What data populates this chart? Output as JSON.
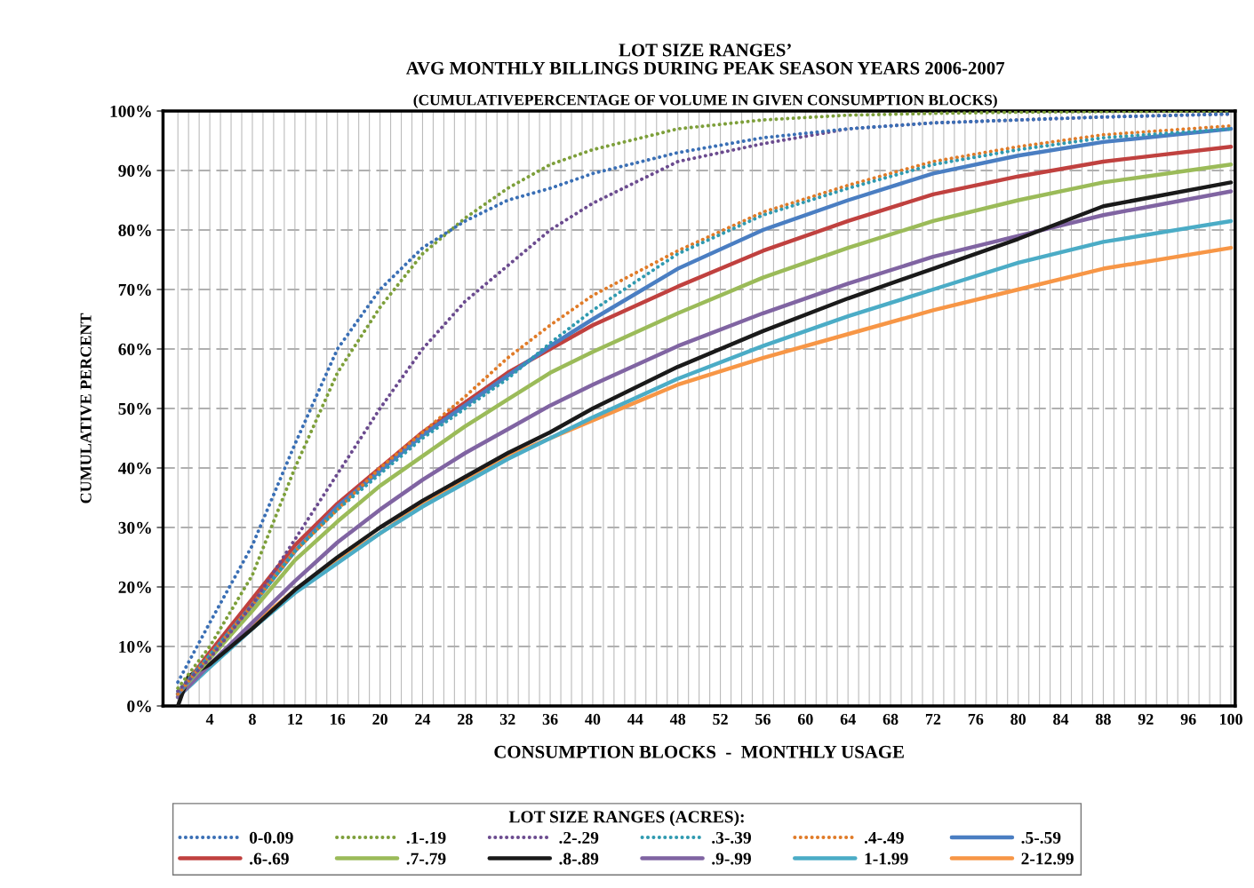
{
  "chart_data": {
    "type": "line",
    "title": "LOT SIZE RANGES’\nAVG MONTHLY BILLINGS DURING PEAK SEASON YEARS 2006-2007",
    "subtitle": "(CUMULATIVEPERCENTAGE OF VOLUME IN GIVEN CONSUMPTION BLOCKS)",
    "xlabel": "CONSUMPTION BLOCKS  -  MONTHLY USAGE",
    "ylabel": "CUMULATIVE PERCENT",
    "legend_title": "LOT SIZE RANGES (ACRES):",
    "legend": "bottom",
    "grid": true,
    "xlim": [
      -0.4,
      100.4
    ],
    "xticks": [
      {
        "value": 1,
        "label": null
      },
      {
        "value": 2,
        "label": null
      },
      {
        "value": 3,
        "label": null
      },
      4,
      {
        "value": 5,
        "label": null
      },
      {
        "value": 6,
        "label": null
      },
      {
        "value": 7,
        "label": null
      },
      8,
      {
        "value": 9,
        "label": null
      },
      {
        "value": 10,
        "label": null
      },
      {
        "value": 11,
        "label": null
      },
      12,
      {
        "value": 13,
        "label": null
      },
      {
        "value": 14,
        "label": null
      },
      {
        "value": 15,
        "label": null
      },
      16,
      {
        "value": 17,
        "label": null
      },
      {
        "value": 18,
        "label": null
      },
      {
        "value": 19,
        "label": null
      },
      20,
      {
        "value": 21,
        "label": null
      },
      {
        "value": 22,
        "label": null
      },
      {
        "value": 23,
        "label": null
      },
      24,
      {
        "value": 25,
        "label": null
      },
      {
        "value": 26,
        "label": null
      },
      {
        "value": 27,
        "label": null
      },
      28,
      {
        "value": 29,
        "label": null
      },
      {
        "value": 30,
        "label": null
      },
      {
        "value": 31,
        "label": null
      },
      32,
      {
        "value": 33,
        "label": null
      },
      {
        "value": 34,
        "label": null
      },
      {
        "value": 35,
        "label": null
      },
      36,
      {
        "value": 37,
        "label": null
      },
      {
        "value": 38,
        "label": null
      },
      {
        "value": 39,
        "label": null
      },
      40,
      {
        "value": 41,
        "label": null
      },
      {
        "value": 42,
        "label": null
      },
      {
        "value": 43,
        "label": null
      },
      44,
      {
        "value": 45,
        "label": null
      },
      {
        "value": 46,
        "label": null
      },
      {
        "value": 47,
        "label": null
      },
      48,
      {
        "value": 49,
        "label": null
      },
      {
        "value": 50,
        "label": null
      },
      {
        "value": 51,
        "label": null
      },
      52,
      {
        "value": 53,
        "label": null
      },
      {
        "value": 54,
        "label": null
      },
      {
        "value": 55,
        "label": null
      },
      56,
      {
        "value": 57,
        "label": null
      },
      {
        "value": 58,
        "label": null
      },
      {
        "value": 59,
        "label": null
      },
      60,
      {
        "value": 61,
        "label": null
      },
      {
        "value": 62,
        "label": null
      },
      {
        "value": 63,
        "label": null
      },
      64,
      {
        "value": 65,
        "label": null
      },
      {
        "value": 66,
        "label": null
      },
      {
        "value": 67,
        "label": null
      },
      68,
      {
        "value": 69,
        "label": null
      },
      {
        "value": 70,
        "label": null
      },
      {
        "value": 71,
        "label": null
      },
      72,
      {
        "value": 73,
        "label": null
      },
      {
        "value": 74,
        "label": null
      },
      {
        "value": 75,
        "label": null
      },
      76,
      {
        "value": 77,
        "label": null
      },
      {
        "value": 78,
        "label": null
      },
      {
        "value": 79,
        "label": null
      },
      80,
      {
        "value": 81,
        "label": null
      },
      {
        "value": 82,
        "label": null
      },
      {
        "value": 83,
        "label": null
      },
      84,
      {
        "value": 85,
        "label": null
      },
      {
        "value": 86,
        "label": null
      },
      {
        "value": 87,
        "label": null
      },
      88,
      {
        "value": 89,
        "label": null
      },
      {
        "value": 90,
        "label": null
      },
      {
        "value": 91,
        "label": null
      },
      92,
      {
        "value": 93,
        "label": null
      },
      {
        "value": 94,
        "label": null
      },
      {
        "value": 95,
        "label": null
      },
      96,
      {
        "value": 97,
        "label": null
      },
      {
        "value": 98,
        "label": null
      },
      {
        "value": 99,
        "label": null
      },
      100
    ],
    "ylim": [
      0,
      100
    ],
    "yticks": [
      {
        "value": 0,
        "label": "0%"
      },
      {
        "value": 10,
        "label": "10%"
      },
      {
        "value": 20,
        "label": "20%"
      },
      {
        "value": 30,
        "label": "30%"
      },
      {
        "value": 40,
        "label": "40%"
      },
      {
        "value": 50,
        "label": "50%"
      },
      {
        "value": 60,
        "label": "60%"
      },
      {
        "value": 70,
        "label": "70%"
      },
      {
        "value": 80,
        "label": "80%"
      },
      {
        "value": 90,
        "label": "90%"
      },
      {
        "value": 100,
        "label": "100%"
      }
    ],
    "series": [
      {
        "name": "0-0.09",
        "color": "#3a6fb5",
        "line_style": "dotted",
        "x": [
          1,
          4,
          8,
          12,
          16,
          20,
          24,
          28,
          32,
          36,
          40,
          48,
          56,
          64,
          72,
          80,
          88,
          100
        ],
        "values": [
          4,
          14,
          27,
          44,
          60,
          70,
          77,
          81.5,
          85,
          87,
          89.5,
          93,
          95.5,
          97,
          98,
          98.5,
          99,
          99.5
        ]
      },
      {
        "name": ".1-.19",
        "color": "#7d9f3a",
        "line_style": "dotted",
        "x": [
          1,
          4,
          8,
          12,
          16,
          20,
          24,
          28,
          32,
          36,
          40,
          48,
          56,
          64,
          72,
          80,
          88,
          100
        ],
        "values": [
          3,
          10,
          22,
          40,
          56,
          67,
          76,
          82,
          87,
          91,
          93.5,
          97,
          98.5,
          99.3,
          99.6,
          99.8,
          99.9,
          100
        ]
      },
      {
        "name": ".2-.29",
        "color": "#6b4b8f",
        "line_style": "dotted",
        "x": [
          1,
          4,
          8,
          12,
          16,
          20,
          24,
          28,
          32,
          36,
          40,
          48,
          56,
          64,
          72,
          80,
          88,
          100
        ],
        "values": [
          2.5,
          8,
          17,
          28,
          39,
          50,
          60,
          68,
          74,
          80,
          84.5,
          91.5,
          94.5,
          97,
          98,
          98.5,
          99,
          99.5
        ]
      },
      {
        "name": ".3-.39",
        "color": "#2f9ab0",
        "line_style": "dotted",
        "x": [
          1,
          4,
          8,
          12,
          16,
          20,
          24,
          28,
          32,
          36,
          40,
          48,
          56,
          64,
          72,
          80,
          88,
          100
        ],
        "values": [
          2.5,
          8.5,
          17,
          26,
          33,
          39,
          45,
          50,
          55,
          61,
          66.5,
          76,
          82.5,
          87,
          91,
          93.5,
          95.5,
          97
        ]
      },
      {
        "name": ".4-.49",
        "color": "#e07b28",
        "line_style": "dotted",
        "x": [
          1,
          4,
          8,
          12,
          16,
          20,
          24,
          28,
          32,
          36,
          40,
          48,
          56,
          64,
          72,
          80,
          88,
          100
        ],
        "values": [
          2,
          8.5,
          17,
          26,
          33,
          40,
          46,
          52,
          58.5,
          64,
          69,
          76.5,
          83,
          87.5,
          91.5,
          94,
          96,
          97.5
        ]
      },
      {
        "name": ".5-.59",
        "color": "#4a7ec2",
        "line_style": "solid",
        "x": [
          1,
          4,
          8,
          12,
          16,
          20,
          24,
          28,
          32,
          36,
          40,
          48,
          56,
          64,
          72,
          80,
          88,
          100
        ],
        "values": [
          2,
          8.5,
          17,
          26,
          33.5,
          39.5,
          45.5,
          50.5,
          55.5,
          60.5,
          65,
          73.5,
          80,
          85,
          89.5,
          92.5,
          94.8,
          97
        ]
      },
      {
        "name": ".6-.69",
        "color": "#c0413f",
        "line_style": "solid",
        "x": [
          1,
          4,
          8,
          12,
          16,
          20,
          24,
          28,
          32,
          36,
          40,
          48,
          56,
          64,
          72,
          80,
          88,
          100
        ],
        "values": [
          2,
          9,
          18,
          27,
          34,
          40,
          46,
          51,
          56,
          60,
          64,
          70.5,
          76.5,
          81.5,
          86,
          89,
          91.5,
          94
        ]
      },
      {
        "name": ".7-.79",
        "color": "#9bbb59",
        "line_style": "solid",
        "x": [
          1,
          4,
          8,
          12,
          16,
          20,
          24,
          28,
          32,
          36,
          40,
          48,
          56,
          64,
          72,
          80,
          88,
          100
        ],
        "values": [
          2,
          8,
          16,
          24.5,
          31,
          37,
          42,
          47,
          51.5,
          56,
          59.5,
          66,
          72,
          77,
          81.5,
          85,
          88,
          91
        ]
      },
      {
        "name": ".8-.89",
        "color": "#1a1a1a",
        "line_style": "solid",
        "x": [
          1,
          2,
          4,
          8,
          12,
          16,
          20,
          24,
          28,
          32,
          36,
          40,
          48,
          56,
          64,
          72,
          80,
          88,
          100
        ],
        "values": [
          0,
          5,
          7,
          13,
          19.5,
          25,
          30,
          34.5,
          38.5,
          42.5,
          46,
          50,
          57,
          63,
          68.5,
          73.5,
          78.5,
          84,
          88
        ]
      },
      {
        "name": ".9-.99",
        "color": "#8064a2",
        "line_style": "solid",
        "x": [
          1,
          4,
          8,
          12,
          16,
          20,
          24,
          28,
          32,
          36,
          40,
          48,
          56,
          64,
          72,
          80,
          88,
          100
        ],
        "values": [
          1.5,
          7,
          14,
          21,
          27.5,
          33,
          38,
          42.5,
          46.5,
          50.5,
          54,
          60.5,
          66,
          71,
          75.5,
          79,
          82.5,
          86.5
        ]
      },
      {
        "name": "1-1.99",
        "color": "#4bacc6",
        "line_style": "solid",
        "x": [
          1,
          4,
          8,
          12,
          16,
          20,
          24,
          28,
          32,
          36,
          40,
          48,
          56,
          64,
          72,
          80,
          88,
          100
        ],
        "values": [
          1.5,
          6.5,
          13,
          19,
          24,
          29,
          33.5,
          37.5,
          41.5,
          45,
          48.5,
          55,
          60.5,
          65.5,
          70,
          74.5,
          78,
          81.5
        ]
      },
      {
        "name": "2-12.99",
        "color": "#f79646",
        "line_style": "solid",
        "x": [
          1,
          4,
          8,
          12,
          16,
          20,
          24,
          28,
          32,
          36,
          40,
          48,
          56,
          64,
          72,
          80,
          88,
          100
        ],
        "values": [
          1.5,
          7,
          13.5,
          19.5,
          24.5,
          29,
          34,
          38,
          42,
          45,
          48,
          54,
          58.5,
          62.5,
          66.5,
          70,
          73.5,
          77
        ]
      }
    ]
  }
}
